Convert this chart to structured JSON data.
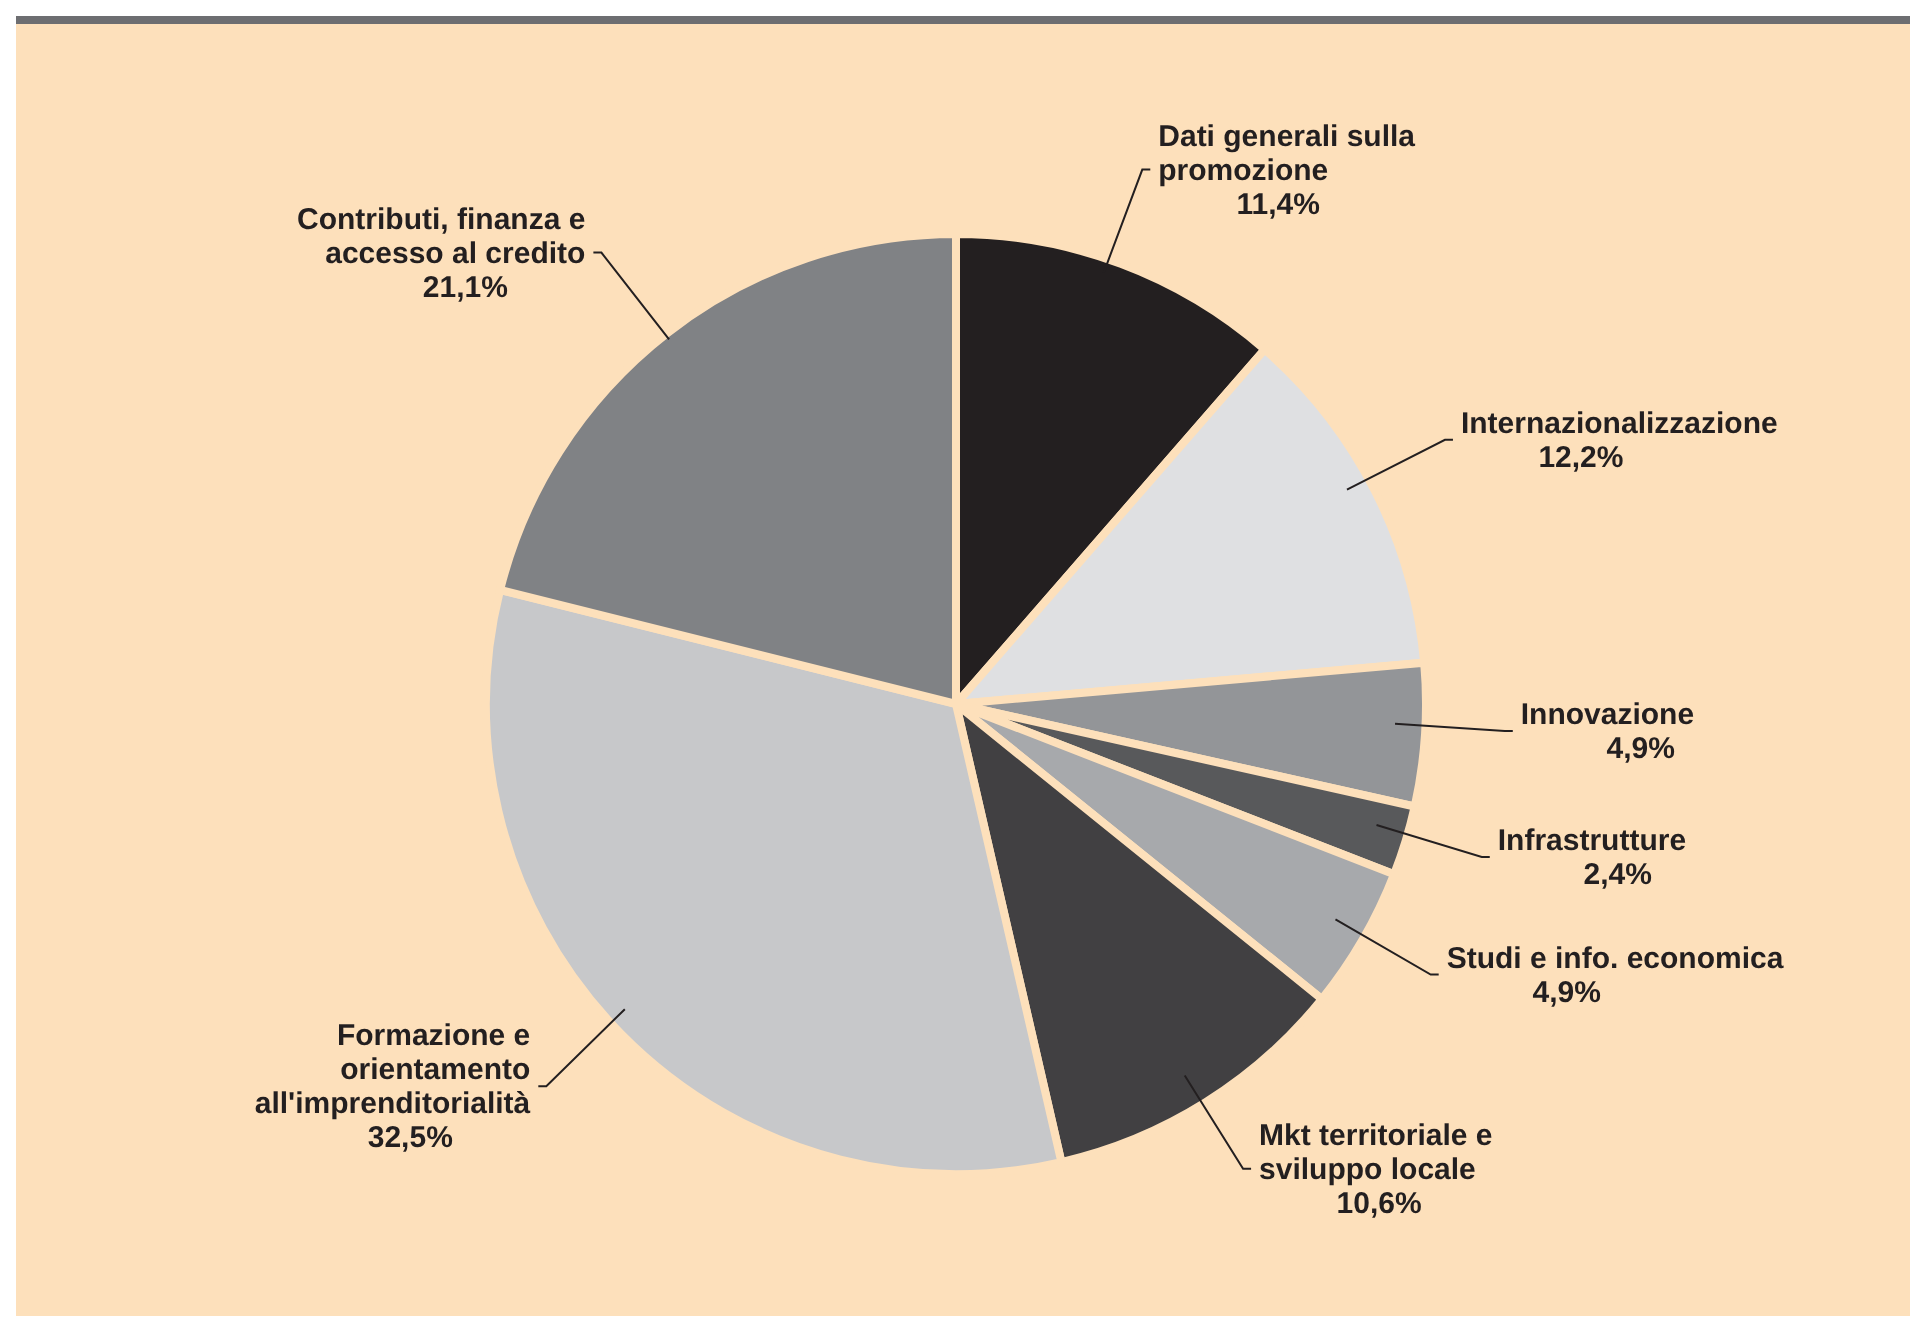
{
  "chart_data": {
    "type": "pie",
    "categories": [
      "Dati generali sulla promozione",
      "Internazionalizzazione",
      "Innovazione",
      "Infrastrutture",
      "Studi e info. economica",
      "Mkt territoriale e sviluppo locale",
      "Formazione e orientamento all'imprenditorialità",
      "Contributi, finanza e accesso al credito"
    ],
    "values": [
      11.4,
      12.2,
      4.9,
      2.4,
      4.9,
      10.6,
      32.5,
      21.1
    ],
    "value_labels": [
      "11,4%",
      "12,2%",
      "4,9%",
      "2,4%",
      "4,9%",
      "10,6%",
      "32,5%",
      "21,1%"
    ],
    "colors": [
      "#231f20",
      "#dfe0e2",
      "#939598",
      "#58595b",
      "#a7a9ac",
      "#414042",
      "#c7c8ca",
      "#808285"
    ],
    "legend": false
  }
}
